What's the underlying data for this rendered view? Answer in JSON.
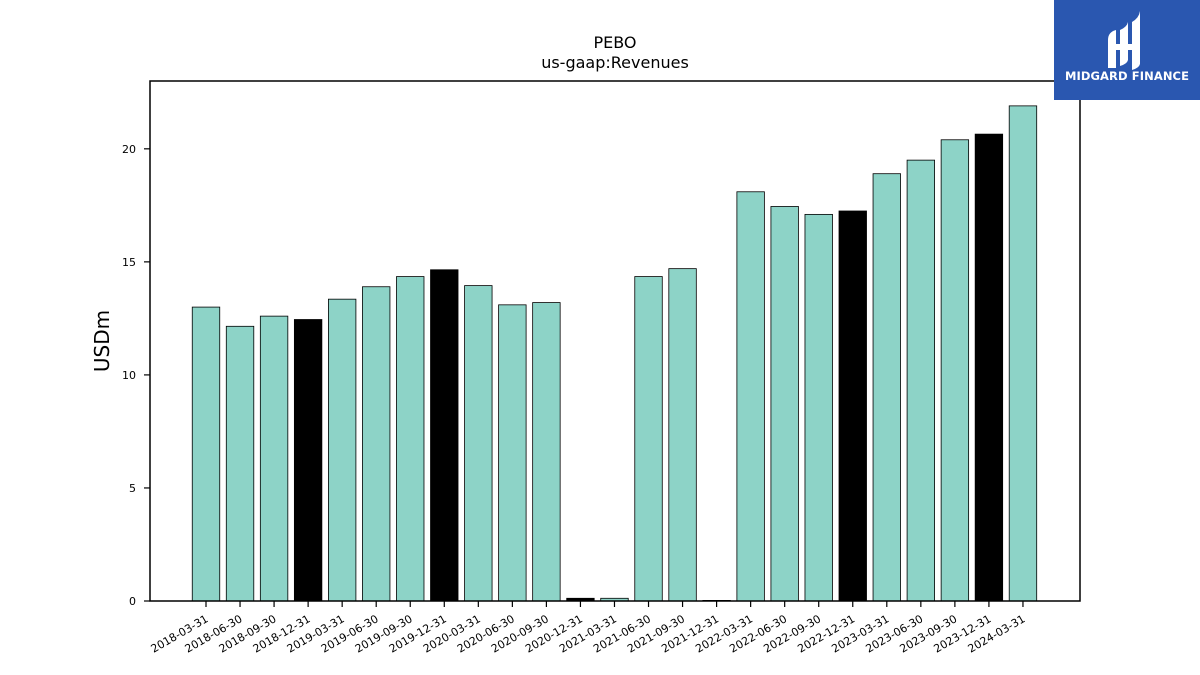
{
  "chart_data": {
    "type": "bar",
    "title": "PEBO",
    "subtitle": "us-gaap:Revenues",
    "xlabel": "",
    "ylabel": "USDm",
    "ylim": [
      0,
      23
    ],
    "yticks": [
      0,
      5,
      10,
      15,
      20
    ],
    "grid": false,
    "categories": [
      "2018-03-31",
      "2018-06-30",
      "2018-09-30",
      "2018-12-31",
      "2019-03-31",
      "2019-06-30",
      "2019-09-30",
      "2019-12-31",
      "2020-03-31",
      "2020-06-30",
      "2020-09-30",
      "2020-12-31",
      "2021-03-31",
      "2021-06-30",
      "2021-09-30",
      "2021-12-31",
      "2022-03-31",
      "2022-06-30",
      "2022-09-30",
      "2022-12-31",
      "2023-03-31",
      "2023-06-30",
      "2023-09-30",
      "2023-12-31",
      "2024-03-31"
    ],
    "values": [
      13.0,
      12.15,
      12.6,
      12.45,
      13.35,
      13.9,
      14.35,
      14.65,
      13.95,
      13.1,
      13.2,
      0.12,
      0.12,
      14.35,
      14.7,
      0.0,
      18.1,
      17.45,
      17.1,
      17.25,
      18.9,
      19.5,
      20.4,
      20.65,
      21.9
    ],
    "bar_colors": [
      "#8dd3c7",
      "#8dd3c7",
      "#8dd3c7",
      "#000000",
      "#8dd3c7",
      "#8dd3c7",
      "#8dd3c7",
      "#000000",
      "#8dd3c7",
      "#8dd3c7",
      "#8dd3c7",
      "#000000",
      "#8dd3c7",
      "#8dd3c7",
      "#8dd3c7",
      "#000000",
      "#8dd3c7",
      "#8dd3c7",
      "#8dd3c7",
      "#000000",
      "#8dd3c7",
      "#8dd3c7",
      "#8dd3c7",
      "#000000",
      "#8dd3c7"
    ]
  },
  "logo": {
    "text": "MIDGARD FINANCE",
    "icon": "midgard-finance-logo-icon",
    "background": "#2a57b0"
  }
}
